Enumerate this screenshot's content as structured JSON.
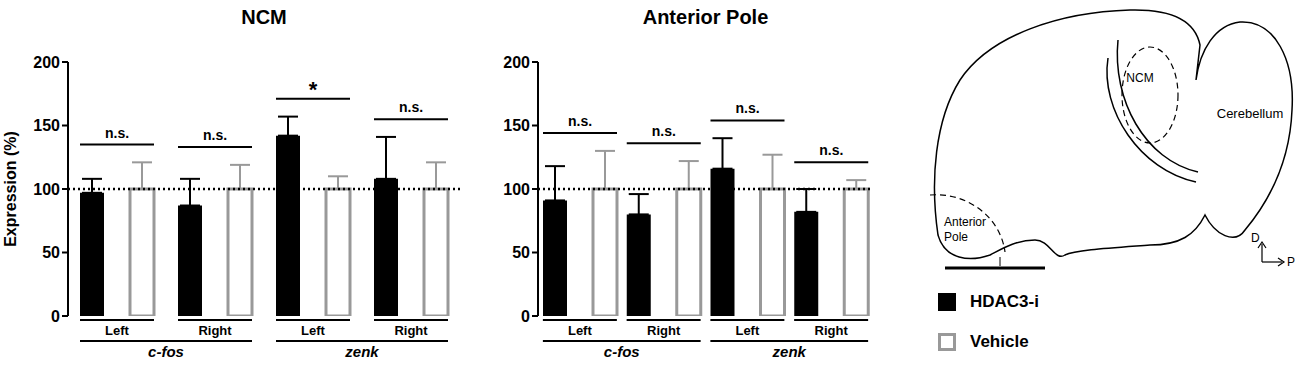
{
  "chart_data": [
    {
      "type": "bar",
      "title": "NCM",
      "y_label": "Expression (%)",
      "categories": [
        "Left",
        "Right",
        "Left",
        "Right"
      ],
      "groups": [
        "c-fos",
        "zenk"
      ],
      "ylim": [
        0,
        200
      ],
      "yticks": [
        0,
        50,
        100,
        150,
        200
      ],
      "reference_line": 100,
      "series": [
        {
          "name": "HDAC3-i",
          "color": "#000000",
          "values": [
            97,
            87,
            142,
            108
          ],
          "errors": [
            11,
            21,
            15,
            33
          ]
        },
        {
          "name": "Vehicle",
          "color": "#999999",
          "values": [
            100,
            100,
            100,
            100
          ],
          "errors": [
            21,
            19,
            10,
            21
          ]
        }
      ],
      "annotations": [
        "n.s.",
        "n.s.",
        "*",
        "n.s."
      ]
    },
    {
      "type": "bar",
      "title": "Anterior Pole",
      "categories": [
        "Left",
        "Right",
        "Left",
        "Right"
      ],
      "groups": [
        "c-fos",
        "zenk"
      ],
      "ylim": [
        0,
        200
      ],
      "yticks": [
        0,
        50,
        100,
        150,
        200
      ],
      "reference_line": 100,
      "series": [
        {
          "name": "HDAC3-i",
          "color": "#000000",
          "values": [
            91,
            80,
            116,
            82
          ],
          "errors": [
            27,
            16,
            24,
            18
          ]
        },
        {
          "name": "Vehicle",
          "color": "#999999",
          "values": [
            100,
            100,
            100,
            100
          ],
          "errors": [
            30,
            22,
            27,
            7
          ]
        }
      ],
      "annotations": [
        "n.s.",
        "n.s.",
        "n.s.",
        "n.s."
      ]
    }
  ],
  "diagram": {
    "regions": [
      "NCM",
      "Cerebellum",
      "Anterior Pole"
    ],
    "axes": [
      "D",
      "P"
    ]
  }
}
